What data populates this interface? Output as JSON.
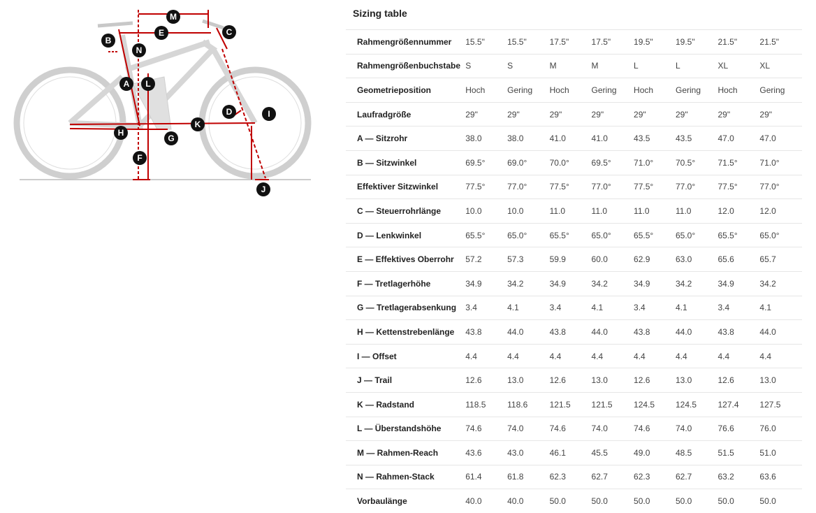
{
  "title": "Sizing table",
  "diagram": {
    "labels": [
      "M",
      "E",
      "C",
      "B",
      "N",
      "A",
      "L",
      "D",
      "I",
      "K",
      "H",
      "G",
      "F",
      "J"
    ],
    "accent": "#c00000"
  },
  "rows": [
    {
      "label": "Rahmengrößennummer",
      "values": [
        "15.5\"",
        "15.5\"",
        "17.5\"",
        "17.5\"",
        "19.5\"",
        "19.5\"",
        "21.5\"",
        "21.5\""
      ]
    },
    {
      "label": "Rahmengrößenbuchstabe",
      "values": [
        "S",
        "S",
        "M",
        "M",
        "L",
        "L",
        "XL",
        "XL"
      ]
    },
    {
      "label": "Geometrieposition",
      "values": [
        "Hoch",
        "Gering",
        "Hoch",
        "Gering",
        "Hoch",
        "Gering",
        "Hoch",
        "Gering"
      ]
    },
    {
      "label": "Laufradgröße",
      "values": [
        "29\"",
        "29\"",
        "29\"",
        "29\"",
        "29\"",
        "29\"",
        "29\"",
        "29\""
      ]
    },
    {
      "label": "A — Sitzrohr",
      "values": [
        "38.0",
        "38.0",
        "41.0",
        "41.0",
        "43.5",
        "43.5",
        "47.0",
        "47.0"
      ]
    },
    {
      "label": "B — Sitzwinkel",
      "values": [
        "69.5°",
        "69.0°",
        "70.0°",
        "69.5°",
        "71.0°",
        "70.5°",
        "71.5°",
        "71.0°"
      ]
    },
    {
      "label": "Effektiver Sitzwinkel",
      "values": [
        "77.5°",
        "77.0°",
        "77.5°",
        "77.0°",
        "77.5°",
        "77.0°",
        "77.5°",
        "77.0°"
      ]
    },
    {
      "label": "C — Steuerrohrlänge",
      "values": [
        "10.0",
        "10.0",
        "11.0",
        "11.0",
        "11.0",
        "11.0",
        "12.0",
        "12.0"
      ]
    },
    {
      "label": "D — Lenkwinkel",
      "values": [
        "65.5°",
        "65.0°",
        "65.5°",
        "65.0°",
        "65.5°",
        "65.0°",
        "65.5°",
        "65.0°"
      ]
    },
    {
      "label": "E — Effektives Oberrohr",
      "values": [
        "57.2",
        "57.3",
        "59.9",
        "60.0",
        "62.9",
        "63.0",
        "65.6",
        "65.7"
      ]
    },
    {
      "label": "F — Tretlagerhöhe",
      "values": [
        "34.9",
        "34.2",
        "34.9",
        "34.2",
        "34.9",
        "34.2",
        "34.9",
        "34.2"
      ]
    },
    {
      "label": "G — Tretlagerabsenkung",
      "values": [
        "3.4",
        "4.1",
        "3.4",
        "4.1",
        "3.4",
        "4.1",
        "3.4",
        "4.1"
      ]
    },
    {
      "label": "H — Kettenstrebenlänge",
      "values": [
        "43.8",
        "44.0",
        "43.8",
        "44.0",
        "43.8",
        "44.0",
        "43.8",
        "44.0"
      ]
    },
    {
      "label": "I — Offset",
      "values": [
        "4.4",
        "4.4",
        "4.4",
        "4.4",
        "4.4",
        "4.4",
        "4.4",
        "4.4"
      ]
    },
    {
      "label": "J — Trail",
      "values": [
        "12.6",
        "13.0",
        "12.6",
        "13.0",
        "12.6",
        "13.0",
        "12.6",
        "13.0"
      ]
    },
    {
      "label": "K — Radstand",
      "values": [
        "118.5",
        "118.6",
        "121.5",
        "121.5",
        "124.5",
        "124.5",
        "127.4",
        "127.5"
      ]
    },
    {
      "label": "L — Überstandshöhe",
      "values": [
        "74.6",
        "74.0",
        "74.6",
        "74.0",
        "74.6",
        "74.0",
        "76.6",
        "76.0"
      ]
    },
    {
      "label": "M — Rahmen-Reach",
      "values": [
        "43.6",
        "43.0",
        "46.1",
        "45.5",
        "49.0",
        "48.5",
        "51.5",
        "51.0"
      ]
    },
    {
      "label": "N — Rahmen-Stack",
      "values": [
        "61.4",
        "61.8",
        "62.3",
        "62.7",
        "62.3",
        "62.7",
        "63.2",
        "63.6"
      ]
    },
    {
      "label": "Vorbaulänge",
      "values": [
        "40.0",
        "40.0",
        "50.0",
        "50.0",
        "50.0",
        "50.0",
        "50.0",
        "50.0"
      ]
    }
  ]
}
